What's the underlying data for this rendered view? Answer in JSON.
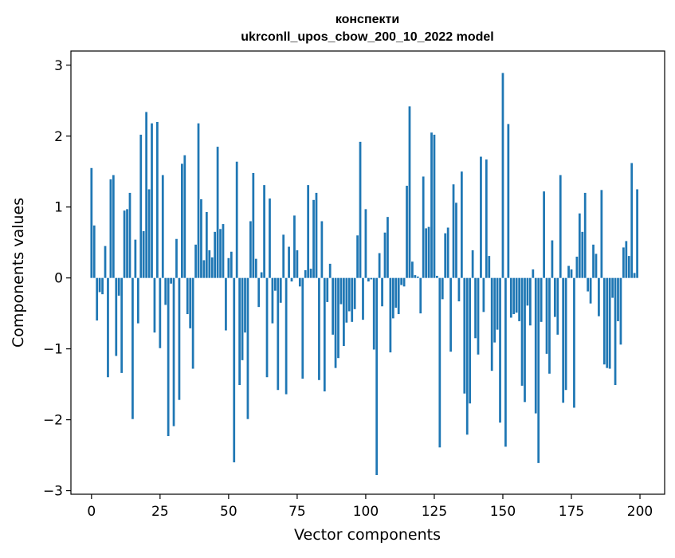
{
  "chart_data": {
    "type": "bar",
    "title": "конспекти",
    "subtitle": "ukrconll_upos_cbow_200_10_2022 model",
    "xlabel": "Vector components",
    "ylabel": "Components values",
    "xlim": [
      -7.5,
      209
    ],
    "ylim": [
      -3.05,
      3.2
    ],
    "xticks": [
      0,
      25,
      50,
      75,
      100,
      125,
      150,
      175,
      200
    ],
    "yticks": [
      -3,
      -2,
      -1,
      0,
      1,
      2,
      3
    ],
    "xtick_labels": [
      "0",
      "25",
      "50",
      "75",
      "100",
      "125",
      "150",
      "175",
      "200"
    ],
    "ytick_labels": [
      "−3",
      "−2",
      "−1",
      "0",
      "1",
      "2",
      "3"
    ],
    "bar_color": "#1f77b4",
    "grid": false,
    "values": [
      1.55,
      0.74,
      -0.6,
      -0.2,
      -0.23,
      0.45,
      -1.4,
      1.39,
      1.45,
      -1.1,
      -0.25,
      -1.34,
      0.95,
      0.97,
      1.2,
      -1.99,
      0.54,
      -0.64,
      2.02,
      0.66,
      2.34,
      1.25,
      2.18,
      -0.77,
      2.2,
      -0.99,
      1.45,
      -0.38,
      -2.23,
      -0.08,
      -2.09,
      0.55,
      -1.72,
      1.61,
      1.73,
      -0.51,
      -0.71,
      -1.28,
      0.47,
      2.18,
      1.11,
      0.25,
      0.93,
      0.39,
      0.29,
      0.65,
      1.85,
      0.69,
      0.76,
      -0.74,
      0.28,
      0.37,
      -2.6,
      1.64,
      -1.51,
      -1.16,
      -0.77,
      -1.99,
      0.8,
      1.48,
      0.27,
      -0.41,
      0.08,
      1.31,
      -1.4,
      1.12,
      -0.64,
      -0.18,
      -1.58,
      -0.35,
      0.61,
      -1.64,
      0.44,
      -0.05,
      0.88,
      0.39,
      -0.12,
      -1.42,
      0.11,
      1.31,
      0.13,
      1.1,
      1.2,
      -1.44,
      0.8,
      -1.6,
      -0.34,
      0.2,
      -0.8,
      -1.27,
      -1.13,
      -0.37,
      -0.96,
      -0.63,
      -0.47,
      -0.62,
      -0.44,
      0.6,
      1.92,
      -0.59,
      0.97,
      -0.05,
      -0.02,
      -1.01,
      -2.78,
      0.35,
      -0.4,
      0.64,
      0.86,
      -1.05,
      -0.57,
      -0.42,
      -0.51,
      -0.1,
      -0.12,
      1.3,
      2.42,
      0.23,
      0.04,
      0.02,
      -0.5,
      1.43,
      0.7,
      0.72,
      2.05,
      2.02,
      0.03,
      -2.39,
      -0.3,
      0.63,
      0.71,
      -1.04,
      1.32,
      1.06,
      -0.33,
      1.5,
      -1.63,
      -2.21,
      -1.77,
      0.39,
      -0.85,
      -1.08,
      1.71,
      -0.48,
      1.67,
      0.31,
      -1.31,
      -0.91,
      -0.73,
      -2.04,
      2.89,
      -2.38,
      2.17,
      -0.56,
      -0.51,
      -0.49,
      -0.61,
      -1.52,
      -1.75,
      -0.39,
      -0.67,
      0.12,
      -1.91,
      -2.61,
      -0.62,
      1.22,
      -1.07,
      -1.35,
      0.53,
      -0.55,
      -0.8,
      1.45,
      -1.76,
      -1.58,
      0.17,
      0.12,
      -1.83,
      0.3,
      0.91,
      0.65,
      1.2,
      -0.19,
      -0.36,
      0.47,
      0.34,
      -0.54,
      1.24,
      -1.22,
      -1.27,
      -1.28,
      -0.28,
      -1.51,
      -0.61,
      -0.94,
      0.43,
      0.52,
      0.31,
      1.62,
      0.07,
      1.25
    ]
  }
}
